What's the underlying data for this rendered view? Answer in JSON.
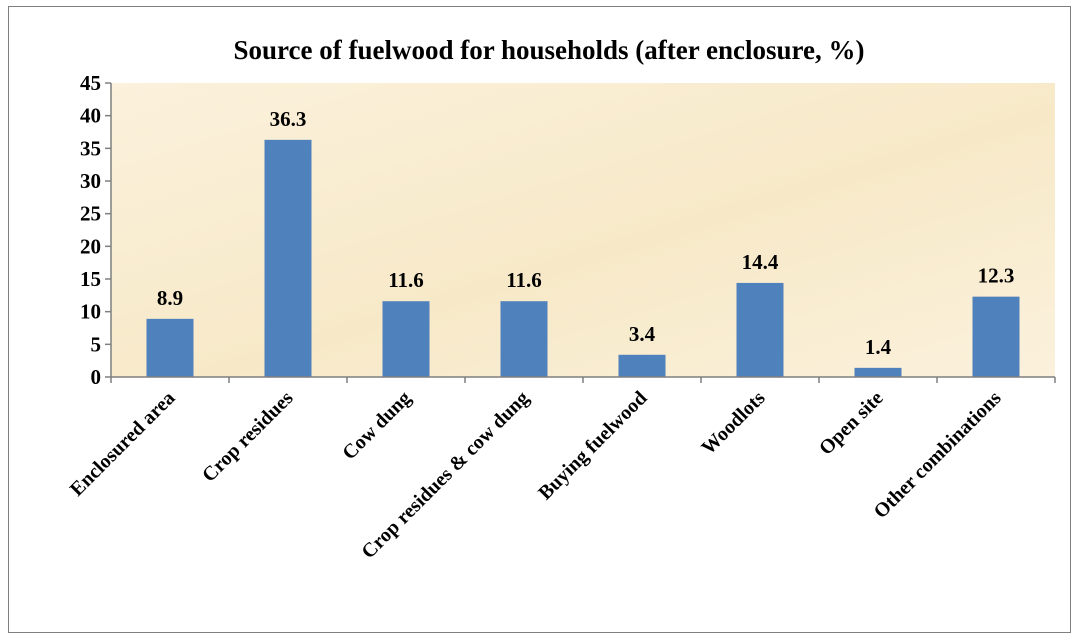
{
  "chart_data": {
    "type": "bar",
    "title": "Source of fuelwood for households (after enclosure, %)",
    "xlabel": "",
    "ylabel": "",
    "categories": [
      "Enclosured area",
      "Crop residues",
      "Cow dung",
      "Crop residues & cow dung",
      "Buying fuelwood",
      "Woodlots",
      "Open site",
      "Other combinations"
    ],
    "values": [
      8.9,
      36.3,
      11.6,
      11.6,
      3.4,
      14.4,
      1.4,
      12.3
    ],
    "data_labels": [
      "8.9",
      "36.3",
      "11.6",
      "11.6",
      "3.4",
      "14.4",
      "1.4",
      "12.3"
    ],
    "ylim": [
      0,
      45
    ],
    "yticks": [
      0,
      5,
      10,
      15,
      20,
      25,
      30,
      35,
      40,
      45
    ],
    "ytick_labels": [
      "0",
      "5",
      "10",
      "15",
      "20",
      "25",
      "30",
      "35",
      "40",
      "45"
    ],
    "grid": false,
    "legend": "none",
    "colors": {
      "bar": "#4f81bd",
      "plot_background": "#f7e9c8",
      "plot_background_light": "#fbf1dc",
      "axis": "#7f7f7f",
      "frame": "#7f7f7f"
    }
  }
}
